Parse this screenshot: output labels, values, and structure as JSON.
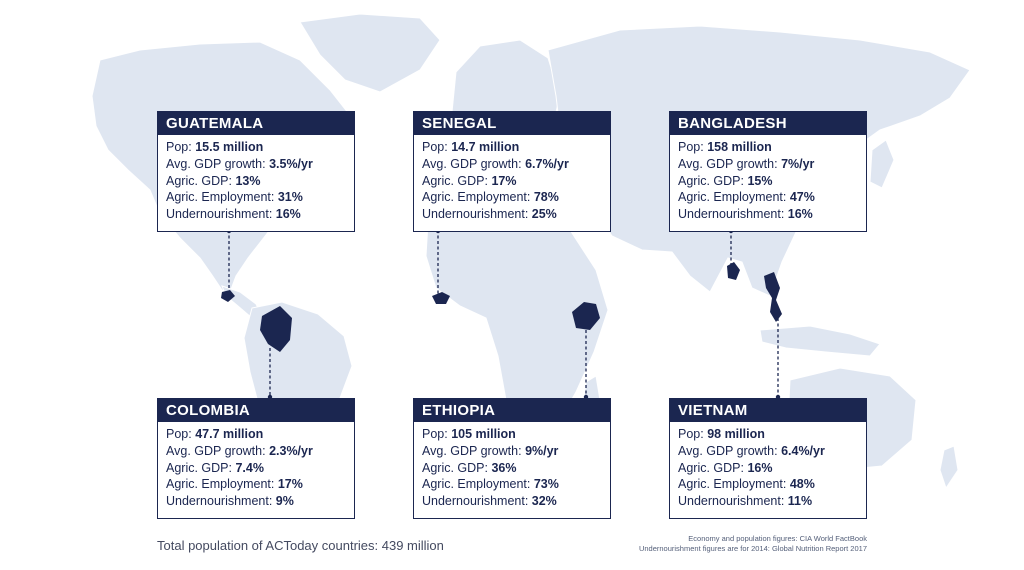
{
  "colors": {
    "navy": "#1b2650",
    "land": "#dfe6f1",
    "text": "#1b2650"
  },
  "countries": [
    {
      "id": "guatemala",
      "name": "GUATEMALA",
      "pop": "15.5 million",
      "gdp_growth": "3.5%/yr",
      "agric_gdp": "13%",
      "agric_employment": "31%",
      "undernourishment": "16%"
    },
    {
      "id": "senegal",
      "name": "SENEGAL",
      "pop": "14.7 million",
      "gdp_growth": "6.7%/yr",
      "agric_gdp": "17%",
      "agric_employment": "78%",
      "undernourishment": "25%"
    },
    {
      "id": "bangladesh",
      "name": "BANGLADESH",
      "pop": "158 million",
      "gdp_growth": "7%/yr",
      "agric_gdp": "15%",
      "agric_employment": "47%",
      "undernourishment": "16%"
    },
    {
      "id": "colombia",
      "name": "COLOMBIA",
      "pop": "47.7 million",
      "gdp_growth": "2.3%/yr",
      "agric_gdp": "7.4%",
      "agric_employment": "17%",
      "undernourishment": "9%"
    },
    {
      "id": "ethiopia",
      "name": "ETHIOPIA",
      "pop": "105 million",
      "gdp_growth": "9%/yr",
      "agric_gdp": "36%",
      "agric_employment": "73%",
      "undernourishment": "32%"
    },
    {
      "id": "vietnam",
      "name": "VIETNAM",
      "pop": "98 million",
      "gdp_growth": "6.4%/yr",
      "agric_gdp": "16%",
      "agric_employment": "48%",
      "undernourishment": "11%"
    }
  ],
  "labels": {
    "pop": "Pop: ",
    "gdp_growth": "Avg. GDP growth: ",
    "agric_gdp": "Agric. GDP: ",
    "agric_employment": "Agric. Employment: ",
    "undernourishment": "Undernourishment: "
  },
  "footer": {
    "total": "Total population of ACToday countries: 439 million",
    "source_1": "Economy and population figures: CIA World FactBook",
    "source_2": "Undernourishment figures are for 2014: Global Nutrition Report 2017"
  }
}
